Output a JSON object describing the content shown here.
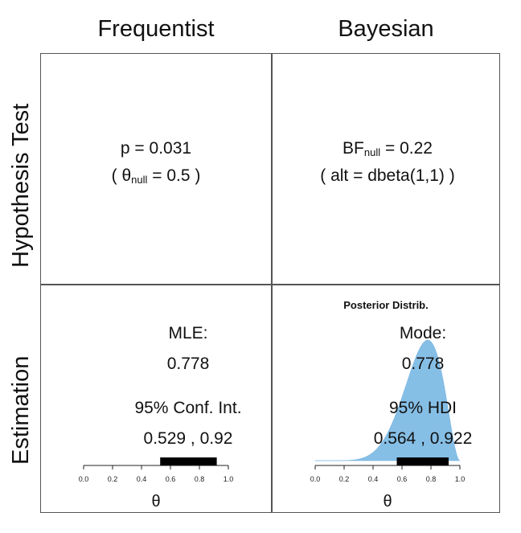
{
  "columns": {
    "left": "Frequentist",
    "right": "Bayesian"
  },
  "rows": {
    "top": "Hypothesis Test",
    "bottom": "Estimation"
  },
  "freq_test": {
    "p_line": "p = 0.031",
    "null_open": "( θ",
    "null_sub": "null",
    "null_rest": " = 0.5 )"
  },
  "bayes_test": {
    "bf_main": "BF",
    "bf_sub": "null",
    "bf_rest": " = 0.22",
    "alt_line": "( alt = dbeta(1,1) )"
  },
  "freq_est": {
    "label": "MLE:",
    "value": "0.778",
    "ci_label": "95% Conf. Int.",
    "ci_value": "0.529 , 0.92"
  },
  "bayes_est": {
    "title": "Posterior Distrib.",
    "label": "Mode:",
    "value": "0.778",
    "hdi_label": "95% HDI",
    "hdi_value": "0.564 , 0.922"
  },
  "axis": {
    "ticks": [
      0.0,
      0.2,
      0.4,
      0.6,
      0.8,
      1.0
    ],
    "tick_labels": [
      "0.0",
      "0.2",
      "0.4",
      "0.6",
      "0.8",
      "1.0"
    ],
    "xlabel": "θ"
  },
  "chart_data": [
    {
      "type": "bar",
      "name": "freq-ci",
      "interval": [
        0.529,
        0.92
      ],
      "xlim": [
        0,
        1
      ]
    },
    {
      "type": "area",
      "name": "posterior",
      "shape": "beta",
      "alpha": 8,
      "beta": 3,
      "color": "#86bfe6",
      "interval": [
        0.564,
        0.922
      ],
      "xlim": [
        0,
        1
      ]
    }
  ]
}
